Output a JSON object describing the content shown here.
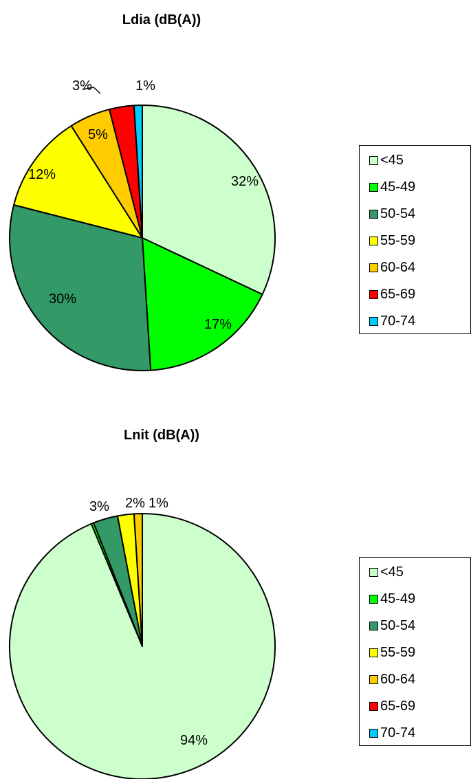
{
  "chart_data": [
    {
      "type": "pie",
      "title": "Ldia (dB(A))",
      "categories": [
        "<45",
        "45-49",
        "50-54",
        "55-59",
        "60-64",
        "65-69",
        "70-74"
      ],
      "values": [
        32,
        17,
        30,
        12,
        5,
        3,
        1
      ],
      "labels": [
        "32%",
        "17%",
        "30%",
        "12%",
        "5%",
        "3%",
        "1%"
      ],
      "colors": [
        "#ccffcc",
        "#00ff00",
        "#339966",
        "#ffff00",
        "#ffcc00",
        "#ff0000",
        "#00ccff"
      ],
      "legend": {
        "position": "right",
        "entries": [
          "<45",
          "45-49",
          "50-54",
          "55-59",
          "60-64",
          "65-69",
          "70-74"
        ]
      }
    },
    {
      "type": "pie",
      "title": "Lnit (dB(A))",
      "categories": [
        "<45",
        "45-49",
        "50-54",
        "55-59",
        "60-64",
        "65-69",
        "70-74"
      ],
      "values": [
        94,
        0.3,
        3,
        2,
        1,
        0,
        0
      ],
      "labels": [
        "94%",
        "",
        "3%",
        "2%",
        "1%",
        "",
        ""
      ],
      "colors": [
        "#ccffcc",
        "#00ff00",
        "#339966",
        "#ffff00",
        "#ffcc00",
        "#ff0000",
        "#00ccff"
      ],
      "legend": {
        "position": "right",
        "entries": [
          "<45",
          "45-49",
          "50-54",
          "55-59",
          "60-64",
          "65-69",
          "70-74"
        ]
      }
    }
  ]
}
